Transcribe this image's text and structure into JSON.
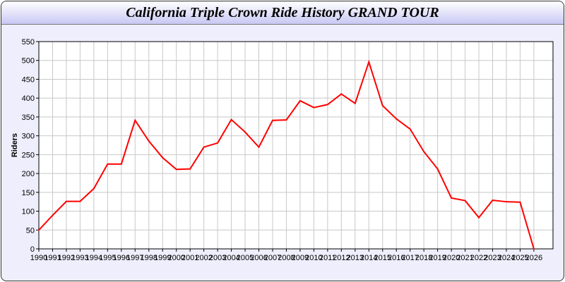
{
  "chart_data": {
    "type": "line",
    "title": "California Triple Crown Ride History GRAND TOUR",
    "xlabel": "",
    "ylabel": "Riders",
    "ylim": [
      0,
      550
    ],
    "yticks": [
      0,
      50,
      100,
      150,
      200,
      250,
      300,
      350,
      400,
      450,
      500,
      550
    ],
    "grid": true,
    "x": [
      1990,
      1991,
      1992,
      1993,
      1994,
      1995,
      1996,
      1997,
      1998,
      1999,
      2000,
      2001,
      2002,
      2003,
      2004,
      2005,
      2006,
      2007,
      2008,
      2009,
      2010,
      2011,
      2012,
      2013,
      2014,
      2015,
      2016,
      2017,
      2018,
      2019,
      2020,
      2021,
      2022,
      2023,
      2024,
      2025,
      2026
    ],
    "series": [
      {
        "values": [
          50,
          89,
          126,
          126,
          160,
          225,
          225,
          341,
          286,
          242,
          211,
          212,
          270,
          281,
          343,
          310,
          270,
          341,
          342,
          393,
          375,
          383,
          411,
          386,
          496,
          380,
          345,
          318,
          258,
          212,
          135,
          128,
          83,
          129,
          125,
          124,
          0
        ],
        "color": "#ff0000"
      }
    ]
  }
}
